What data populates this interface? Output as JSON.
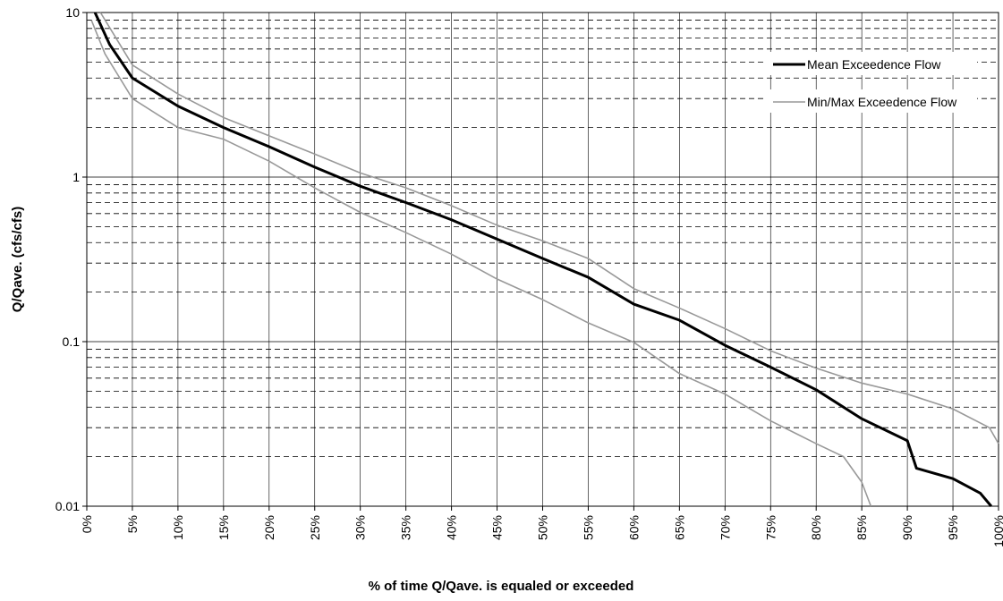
{
  "chart_data": {
    "type": "line",
    "xlabel": "% of time Q/Qave. is equaled or exceeded",
    "ylabel": "Q/Qave. (cfs/cfs)",
    "log_y": true,
    "grid": true,
    "xlim": [
      0,
      100
    ],
    "ylim": [
      0.01,
      10
    ],
    "xticks": [
      {
        "value": 0,
        "label": "0%"
      },
      {
        "value": 5,
        "label": "5%"
      },
      {
        "value": 10,
        "label": "10%"
      },
      {
        "value": 15,
        "label": "15%"
      },
      {
        "value": 20,
        "label": "20%"
      },
      {
        "value": 25,
        "label": "25%"
      },
      {
        "value": 30,
        "label": "30%"
      },
      {
        "value": 35,
        "label": "35%"
      },
      {
        "value": 40,
        "label": "40%"
      },
      {
        "value": 45,
        "label": "45%"
      },
      {
        "value": 50,
        "label": "50%"
      },
      {
        "value": 55,
        "label": "55%"
      },
      {
        "value": 60,
        "label": "60%"
      },
      {
        "value": 65,
        "label": "65%"
      },
      {
        "value": 70,
        "label": "70%"
      },
      {
        "value": 75,
        "label": "75%"
      },
      {
        "value": 80,
        "label": "80%"
      },
      {
        "value": 85,
        "label": "85%"
      },
      {
        "value": 90,
        "label": "90%"
      },
      {
        "value": 95,
        "label": "95%"
      },
      {
        "value": 100,
        "label": "100%"
      }
    ],
    "yticks": [
      0.01,
      0.1,
      1,
      10
    ],
    "yminorticks": [
      0.02,
      0.03,
      0.04,
      0.05,
      0.06,
      0.07,
      0.08,
      0.09,
      0.2,
      0.3,
      0.4,
      0.5,
      0.6,
      0.7,
      0.8,
      0.9,
      2,
      3,
      4,
      5,
      6,
      7,
      8,
      9
    ],
    "legend": "upper right",
    "series": [
      {
        "name": "Mean Exceedence Flow",
        "color": "#000000",
        "x": [
          0.9,
          2.5,
          5,
          10,
          15,
          20,
          25,
          30,
          35,
          40,
          45,
          50,
          55,
          60,
          65,
          70,
          75,
          80,
          85,
          90,
          91,
          95,
          98,
          99.2
        ],
        "values": [
          10,
          6.4,
          4.0,
          2.7,
          2.0,
          1.53,
          1.15,
          0.88,
          0.7,
          0.55,
          0.42,
          0.32,
          0.246,
          0.169,
          0.135,
          0.095,
          0.07,
          0.051,
          0.034,
          0.025,
          0.017,
          0.0147,
          0.012,
          0.01
        ]
      },
      {
        "name": "Min/Max Exceedence Flow",
        "color": "#999999",
        "x_max": [
          1.5,
          5,
          10,
          15,
          20,
          25,
          30,
          35,
          40,
          45,
          50,
          55,
          60,
          65,
          70,
          75,
          80,
          85,
          90,
          95,
          99,
          100
        ],
        "max": [
          10,
          4.8,
          3.2,
          2.3,
          1.78,
          1.38,
          1.06,
          0.86,
          0.67,
          0.51,
          0.41,
          0.32,
          0.21,
          0.16,
          0.12,
          0.088,
          0.069,
          0.056,
          0.048,
          0.039,
          0.03,
          0.024
        ],
        "x_min": [
          0.5,
          2,
          5,
          10,
          15,
          20,
          25,
          30,
          35,
          40,
          45,
          50,
          55,
          60,
          65,
          70,
          75,
          80,
          83,
          85,
          86
        ],
        "min": [
          9,
          5.6,
          3.0,
          2.0,
          1.7,
          1.25,
          0.86,
          0.61,
          0.46,
          0.34,
          0.24,
          0.18,
          0.13,
          0.099,
          0.064,
          0.048,
          0.033,
          0.024,
          0.02,
          0.014,
          0.01
        ]
      }
    ]
  }
}
